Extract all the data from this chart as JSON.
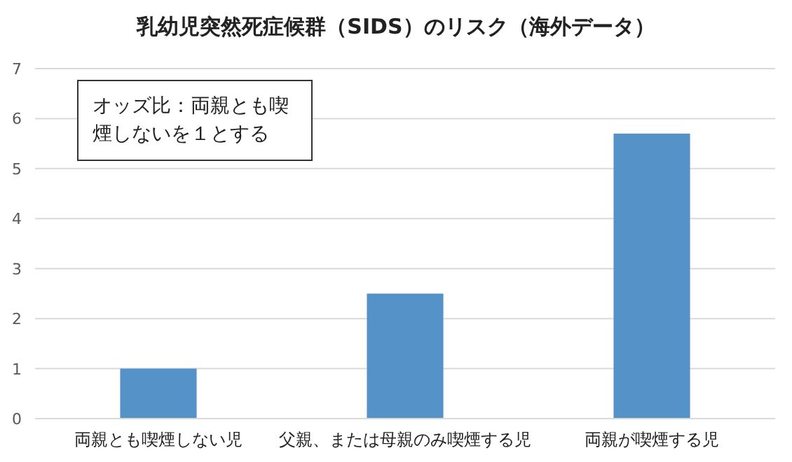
{
  "chart_data": {
    "type": "bar",
    "title": "乳幼児突然死症候群（SIDS）のリスク（海外データ）",
    "categories": [
      "両親とも喫煙しない児",
      "父親、または母親のみ喫煙する児",
      "両親が喫煙する児"
    ],
    "values": [
      1,
      2.5,
      5.7
    ],
    "color": "#5592c8",
    "ylim": [
      0,
      7
    ],
    "yticks": [
      0,
      1,
      2,
      3,
      4,
      5,
      6,
      7
    ],
    "grid": "y",
    "annotations": [
      "オッズ比：両親とも喫煙しないを１とする"
    ]
  }
}
